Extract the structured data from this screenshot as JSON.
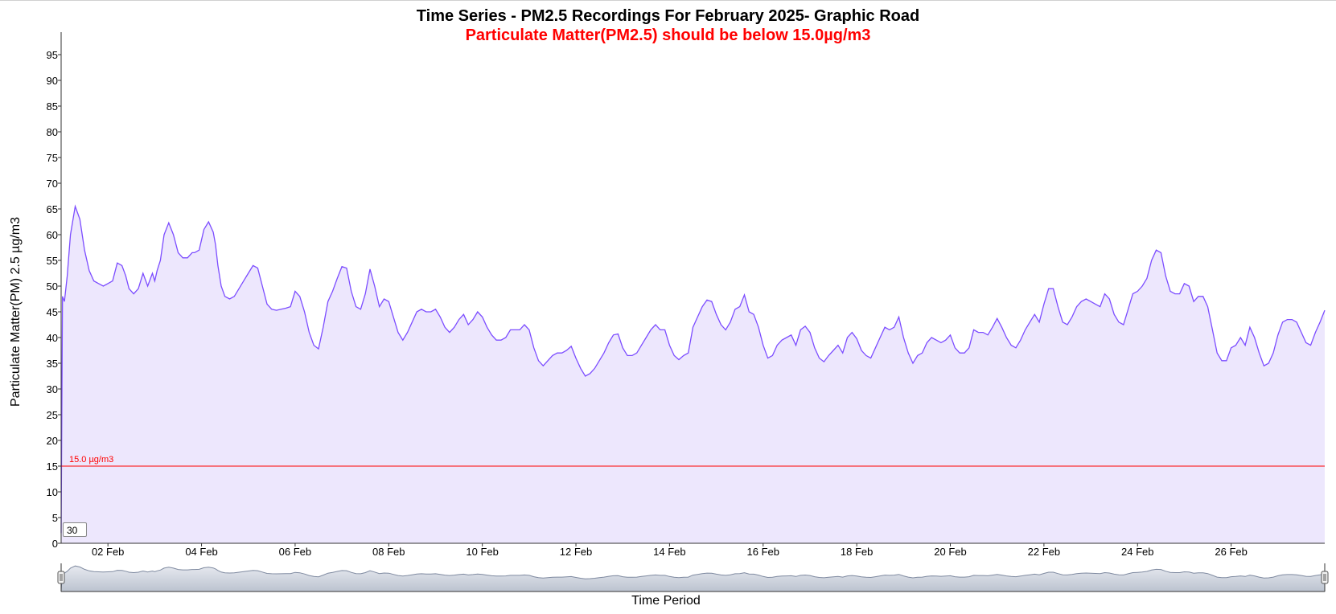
{
  "title": "Time Series - PM2.5 Recordings For February 2025- Graphic Road",
  "subtitle": "Particulate Matter(PM2.5) should be below 15.0µg/m3",
  "zoom_input_value": "30",
  "colors": {
    "line": "#7c4dff",
    "area": "#ede7fd",
    "threshold": "#ff0000",
    "navigator_fill": "#bcc3d0"
  },
  "chart_data": {
    "type": "area",
    "ylabel": "Particulate Matter(PM) 2.5 µg/m3",
    "xlabel": "Time Period",
    "ylim": [
      0,
      100
    ],
    "yticks": [
      0,
      5,
      10,
      15,
      20,
      25,
      30,
      35,
      40,
      45,
      50,
      55,
      60,
      65,
      70,
      75,
      80,
      85,
      90,
      95
    ],
    "xlim": [
      1,
      28
    ],
    "xticks": [
      {
        "day": 2,
        "label": "02 Feb"
      },
      {
        "day": 4,
        "label": "04 Feb"
      },
      {
        "day": 6,
        "label": "06 Feb"
      },
      {
        "day": 8,
        "label": "08 Feb"
      },
      {
        "day": 10,
        "label": "10 Feb"
      },
      {
        "day": 12,
        "label": "12 Feb"
      },
      {
        "day": 14,
        "label": "14 Feb"
      },
      {
        "day": 16,
        "label": "16 Feb"
      },
      {
        "day": 18,
        "label": "18 Feb"
      },
      {
        "day": 20,
        "label": "20 Feb"
      },
      {
        "day": 22,
        "label": "22 Feb"
      },
      {
        "day": 24,
        "label": "24 Feb"
      },
      {
        "day": 26,
        "label": "26 Feb"
      }
    ],
    "threshold": {
      "value": 15,
      "label": "15.0 µg/m3"
    },
    "grid": false,
    "legend": "none",
    "series": [
      {
        "x": [
          1,
          1.03,
          1.07,
          1.13,
          1.2,
          1.3,
          1.4,
          1.5,
          1.6,
          1.7,
          1.8,
          1.9,
          2.0,
          2.1,
          2.2,
          2.3,
          2.38,
          2.45,
          2.55,
          2.65,
          2.75,
          2.85,
          2.95,
          3.0,
          3.05,
          3.12,
          3.2,
          3.3,
          3.4,
          3.5,
          3.6,
          3.7,
          3.8,
          3.85,
          3.95,
          4.05,
          4.15,
          4.25,
          4.3,
          4.35,
          4.42,
          4.5,
          4.6,
          4.7,
          4.8,
          4.9,
          5.0,
          5.1,
          5.2,
          5.3,
          5.4,
          5.5,
          5.6,
          5.7,
          5.8,
          5.9,
          6.0,
          6.1,
          6.2,
          6.3,
          6.4,
          6.5,
          6.6,
          6.7,
          6.8,
          6.9,
          7.0,
          7.1,
          7.2,
          7.3,
          7.4,
          7.5,
          7.6,
          7.7,
          7.8,
          7.9,
          8.0,
          8.1,
          8.2,
          8.3,
          8.4,
          8.5,
          8.6,
          8.7,
          8.8,
          8.9,
          9.0,
          9.1,
          9.2,
          9.3,
          9.4,
          9.5,
          9.6,
          9.7,
          9.8,
          9.9,
          10.0,
          10.1,
          10.2,
          10.3,
          10.4,
          10.5,
          10.6,
          10.7,
          10.8,
          10.9,
          11.0,
          11.1,
          11.2,
          11.3,
          11.4,
          11.5,
          11.6,
          11.7,
          11.8,
          11.9,
          12.0,
          12.1,
          12.2,
          12.3,
          12.4,
          12.5,
          12.6,
          12.7,
          12.8,
          12.9,
          13.0,
          13.1,
          13.2,
          13.3,
          13.4,
          13.5,
          13.6,
          13.7,
          13.8,
          13.9,
          14.0,
          14.1,
          14.2,
          14.3,
          14.4,
          14.5,
          14.6,
          14.7,
          14.8,
          14.9,
          15.0,
          15.1,
          15.2,
          15.3,
          15.4,
          15.5,
          15.6,
          15.7,
          15.8,
          15.9,
          16.0,
          16.1,
          16.2,
          16.3,
          16.4,
          16.5,
          16.6,
          16.7,
          16.8,
          16.9,
          17.0,
          17.1,
          17.2,
          17.3,
          17.4,
          17.5,
          17.6,
          17.7,
          17.8,
          17.9,
          18.0,
          18.1,
          18.2,
          18.3,
          18.4,
          18.5,
          18.6,
          18.7,
          18.8,
          18.9,
          19.0,
          19.1,
          19.2,
          19.3,
          19.4,
          19.5,
          19.6,
          19.7,
          19.8,
          19.9,
          20.0,
          20.1,
          20.2,
          20.3,
          20.4,
          20.5,
          20.6,
          20.7,
          20.8,
          20.9,
          21.0,
          21.1,
          21.2,
          21.3,
          21.4,
          21.5,
          21.6,
          21.7,
          21.8,
          21.9,
          22.0,
          22.1,
          22.2,
          22.3,
          22.4,
          22.5,
          22.6,
          22.7,
          22.8,
          22.9,
          23.0,
          23.1,
          23.2,
          23.3,
          23.4,
          23.5,
          23.6,
          23.7,
          23.8,
          23.9,
          24.0,
          24.1,
          24.2,
          24.3,
          24.4,
          24.5,
          24.6,
          24.7,
          24.8,
          24.9,
          25.0,
          25.1,
          25.2,
          25.3,
          25.4,
          25.5,
          25.6,
          25.7,
          25.8,
          25.9,
          26.0,
          26.1,
          26.2,
          26.3,
          26.4,
          26.5,
          26.6,
          26.7,
          26.8,
          26.9,
          27.0,
          27.1,
          27.2,
          27.3,
          27.4,
          27.5,
          27.6,
          27.7,
          27.8,
          27.9,
          28.0
        ],
        "y": [
          2,
          48,
          47,
          52,
          60,
          65.5,
          63,
          57,
          53,
          51,
          50.5,
          50,
          50.5,
          51,
          54.5,
          54,
          52,
          49.5,
          48.5,
          49.5,
          52.5,
          50,
          52.5,
          51,
          53,
          55,
          60,
          62.3,
          60,
          56.5,
          55.5,
          55.5,
          56.5,
          56.5,
          57,
          61,
          62.5,
          60.5,
          58,
          54,
          50,
          48,
          47.5,
          48,
          49.5,
          51,
          52.5,
          54,
          53.5,
          50,
          46.5,
          45.5,
          45.3,
          45.5,
          45.7,
          46,
          49,
          48,
          45,
          41,
          38.5,
          37.8,
          42,
          47,
          49,
          51.5,
          53.8,
          53.5,
          49,
          46,
          45.5,
          48.5,
          53.3,
          50,
          46,
          47.5,
          47,
          44,
          41,
          39.5,
          41,
          43,
          45,
          45.5,
          45,
          45,
          45.5,
          44,
          42,
          41,
          42,
          43.5,
          44.5,
          42.5,
          43.5,
          45,
          44,
          42,
          40.5,
          39.5,
          39.5,
          40,
          41.5,
          41.5,
          41.5,
          42.5,
          41.5,
          38,
          35.5,
          34.5,
          35.5,
          36.5,
          37,
          37,
          37.5,
          38.3,
          36,
          34,
          32.5,
          33,
          34,
          35.5,
          37,
          39,
          40.5,
          40.7,
          38,
          36.5,
          36.5,
          37,
          38.5,
          40,
          41.5,
          42.5,
          41.5,
          41.5,
          38.5,
          36.5,
          35.7,
          36.5,
          37,
          42,
          44,
          46,
          47.3,
          47,
          44.5,
          42.5,
          41.5,
          43,
          45.5,
          46,
          48.3,
          45,
          44.5,
          42,
          38.5,
          36,
          36.5,
          38.5,
          39.5,
          40,
          40.5,
          38.5,
          41.5,
          42.2,
          41,
          38,
          36,
          35.3,
          36.5,
          37.5,
          38.5,
          37,
          40,
          41,
          39.8,
          37.5,
          36.5,
          36,
          38,
          40,
          42,
          41.5,
          42,
          44,
          40,
          37,
          35,
          36.5,
          37,
          39,
          40,
          39.5,
          39,
          39.5,
          40.5,
          38,
          37,
          37,
          38,
          41.5,
          41,
          41,
          40.5,
          42,
          43.7,
          42,
          40,
          38.5,
          38,
          39.5,
          41.5,
          43,
          44.5,
          43,
          46.5,
          49.5,
          49.5,
          46,
          43,
          42.5,
          44,
          46,
          47,
          47.5,
          47,
          46.5,
          46,
          48.5,
          47.5,
          44.5,
          43,
          42.5,
          45.5,
          48.5,
          49,
          50,
          51.5,
          55,
          57,
          56.5,
          52,
          49,
          48.5,
          48.5,
          50.5,
          50,
          47,
          48,
          48,
          46,
          41.5,
          37,
          35.5,
          35.5,
          38,
          38.5,
          40,
          38.5,
          42,
          40,
          37,
          34.5,
          35,
          37,
          40.5,
          43,
          43.5,
          43.5,
          43,
          41,
          39,
          38.5,
          41,
          43,
          45.3
        ]
      }
    ]
  }
}
